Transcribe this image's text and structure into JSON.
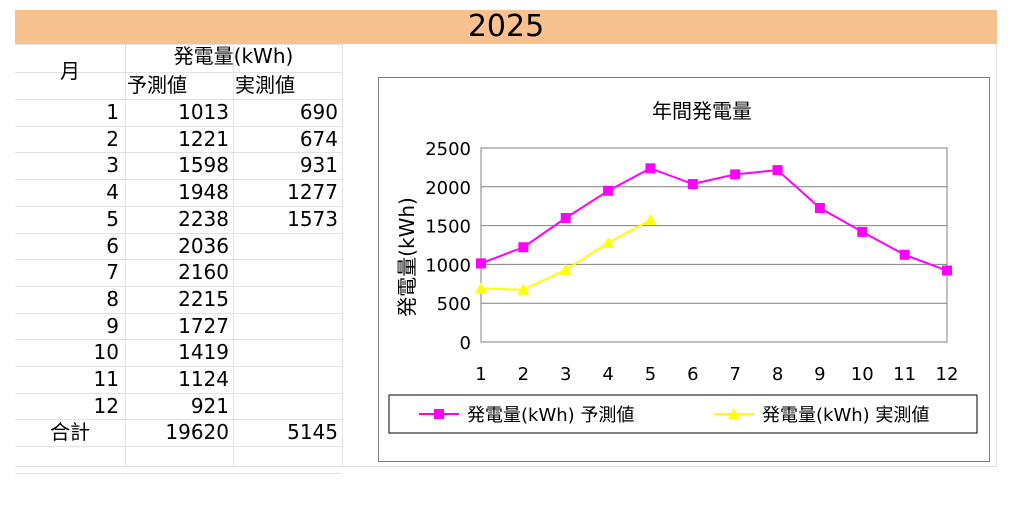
{
  "title": "2025",
  "table": {
    "month_header": "月",
    "group_header": "発電量(kWh)",
    "col_forecast": "予測値",
    "col_actual": "実測値",
    "rows": [
      {
        "month": "1",
        "forecast": "1013",
        "actual": "690"
      },
      {
        "month": "2",
        "forecast": "1221",
        "actual": "674"
      },
      {
        "month": "3",
        "forecast": "1598",
        "actual": "931"
      },
      {
        "month": "4",
        "forecast": "1948",
        "actual": "1277"
      },
      {
        "month": "5",
        "forecast": "2238",
        "actual": "1573"
      },
      {
        "month": "6",
        "forecast": "2036",
        "actual": ""
      },
      {
        "month": "7",
        "forecast": "2160",
        "actual": ""
      },
      {
        "month": "8",
        "forecast": "2215",
        "actual": ""
      },
      {
        "month": "9",
        "forecast": "1727",
        "actual": ""
      },
      {
        "month": "10",
        "forecast": "1419",
        "actual": ""
      },
      {
        "month": "11",
        "forecast": "1124",
        "actual": ""
      },
      {
        "month": "12",
        "forecast": "921",
        "actual": ""
      }
    ],
    "total_label": "合計",
    "total_forecast": "19620",
    "total_actual": "5145"
  },
  "colors": {
    "title_bar": "#f7c08f",
    "forecast": "#ff00ff",
    "actual": "#ffff00"
  },
  "chart_data": {
    "type": "line",
    "title": "年間発電量",
    "xlabel": "",
    "ylabel": "発電量(kWh)",
    "categories": [
      "1",
      "2",
      "3",
      "4",
      "5",
      "6",
      "7",
      "8",
      "9",
      "10",
      "11",
      "12"
    ],
    "ylim": [
      0,
      2500
    ],
    "yticks": [
      "0",
      "500",
      "1000",
      "1500",
      "2000",
      "2500"
    ],
    "grid": true,
    "legend_position": "bottom",
    "series": [
      {
        "name": "発電量(kWh) 予測値",
        "marker": "square",
        "values": [
          1013,
          1221,
          1598,
          1948,
          2238,
          2036,
          2160,
          2215,
          1727,
          1419,
          1124,
          921
        ]
      },
      {
        "name": "発電量(kWh) 実測値",
        "marker": "triangle",
        "values": [
          690,
          674,
          931,
          1277,
          1573,
          null,
          null,
          null,
          null,
          null,
          null,
          null
        ]
      }
    ]
  }
}
